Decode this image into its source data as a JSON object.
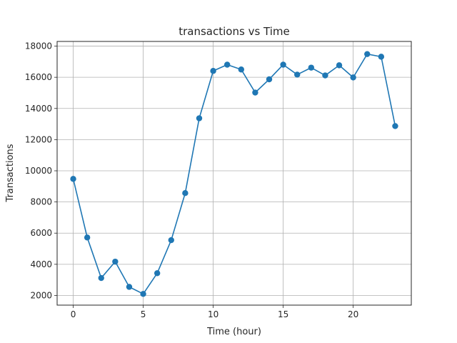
{
  "chart_data": {
    "type": "line",
    "title": "transactions vs Time",
    "xlabel": "Time (hour)",
    "ylabel": "Transactions",
    "xlim": [
      -1.15,
      24.15
    ],
    "ylim": [
      1380,
      18300
    ],
    "x_ticks": [
      0,
      5,
      10,
      15,
      20
    ],
    "y_ticks": [
      2000,
      4000,
      6000,
      8000,
      10000,
      12000,
      14000,
      16000,
      18000
    ],
    "grid": true,
    "line_color": "#1f77b4",
    "series": [
      {
        "x": [
          0,
          1,
          2,
          3,
          4,
          5,
          6,
          7,
          8,
          9,
          10,
          11,
          12,
          13,
          14,
          15,
          16,
          17,
          18,
          19,
          20,
          21,
          22,
          23
        ],
        "values": [
          9480,
          5720,
          3120,
          4170,
          2550,
          2100,
          3430,
          5550,
          8570,
          13370,
          16410,
          16810,
          16500,
          15020,
          15870,
          16810,
          16170,
          16620,
          16120,
          16770,
          15990,
          17490,
          17320,
          12870
        ]
      }
    ]
  }
}
